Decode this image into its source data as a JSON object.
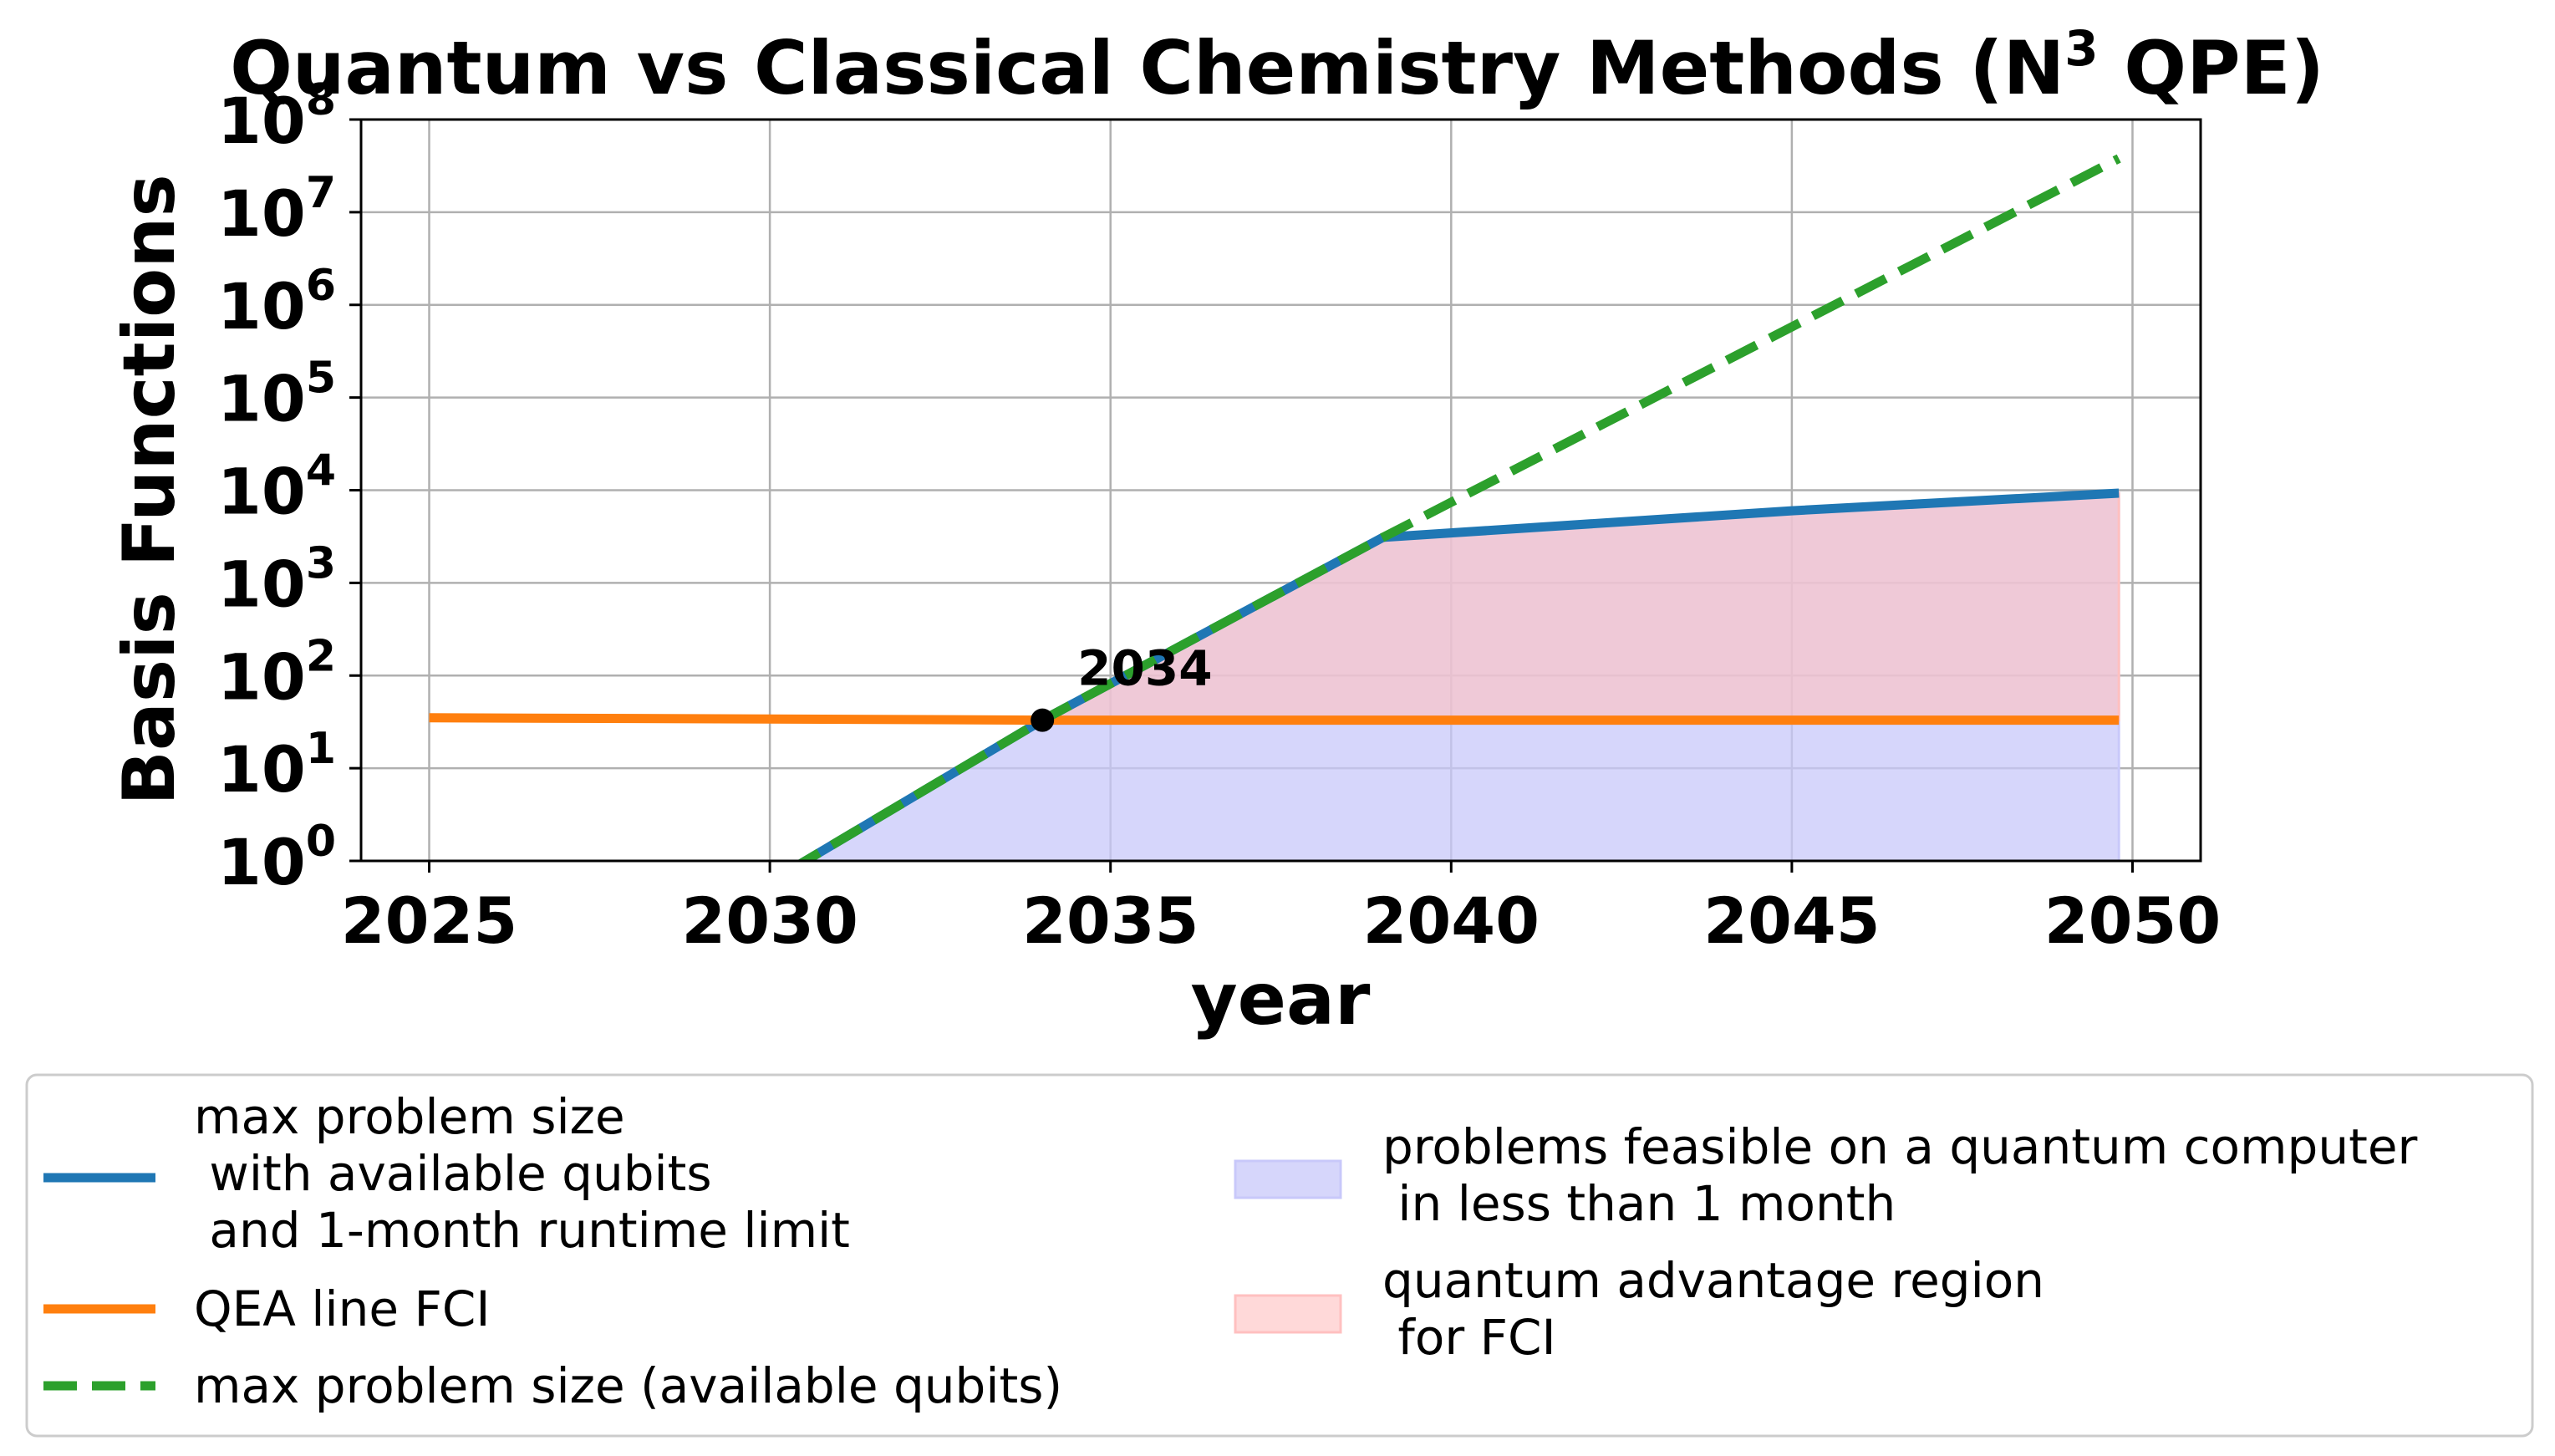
{
  "chart_data": {
    "type": "line",
    "title": "Quantum vs Classical Chemistry Methods (N",
    "title_superscript": "3",
    "title_suffix": " QPE)",
    "xlabel": "year",
    "ylabel": "Basis Functions",
    "xlim": [
      2024.0,
      2051.0
    ],
    "ylim": [
      1,
      100000000
    ],
    "yscale": "log",
    "grid": true,
    "x_ticks": [
      2025,
      2030,
      2035,
      2040,
      2045,
      2050
    ],
    "x_tick_labels": [
      "2025",
      "2030",
      "2035",
      "2040",
      "2045",
      "2050"
    ],
    "y_ticks": [
      {
        "value": 1,
        "base": "10",
        "exp": "0"
      },
      {
        "value": 10,
        "base": "10",
        "exp": "1"
      },
      {
        "value": 100,
        "base": "10",
        "exp": "2"
      },
      {
        "value": 1000,
        "base": "10",
        "exp": "3"
      },
      {
        "value": 10000,
        "base": "10",
        "exp": "4"
      },
      {
        "value": 100000,
        "base": "10",
        "exp": "5"
      },
      {
        "value": 1000000,
        "base": "10",
        "exp": "6"
      },
      {
        "value": 10000000,
        "base": "10",
        "exp": "7"
      },
      {
        "value": 100000000,
        "base": "10",
        "exp": "8"
      }
    ],
    "series": [
      {
        "name": "max problem size\n with available qubits\n and 1-month runtime limit",
        "color": "#1f77b4",
        "style": "solid",
        "x": [
          2030.3,
          2034,
          2039,
          2045,
          2049.8
        ],
        "y": [
          0.8,
          33,
          3100,
          6000,
          9300
        ]
      },
      {
        "name": "QEA line FCI",
        "color": "#ff7f0e",
        "style": "solid",
        "x": [
          2025,
          2030,
          2034,
          2040,
          2045,
          2049.8
        ],
        "y": [
          35,
          34,
          33,
          33,
          33,
          33
        ]
      },
      {
        "name": "max problem size (available qubits)",
        "color": "#2ca02c",
        "style": "dashed",
        "x": [
          2030.3,
          2034,
          2039,
          2049.8
        ],
        "y": [
          0.8,
          33,
          3100,
          38000000
        ]
      }
    ],
    "fills": [
      {
        "name": "problems feasible on a quantum computer\n in less than 1 month",
        "color": "#c8c8fa",
        "x": [
          2030.3,
          2034,
          2039,
          2045,
          2049.8
        ],
        "y": [
          0.8,
          33,
          3100,
          6000,
          9300
        ],
        "baseline": 1
      },
      {
        "name": "quantum advantage region\n for FCI",
        "color": "#ffc0c0",
        "x": [
          2034,
          2039,
          2045,
          2049.8
        ],
        "y": [
          33,
          3100,
          6000,
          9300
        ],
        "baseline": 33
      }
    ],
    "annotations": [
      {
        "text": "2034",
        "x": 2034,
        "y": 33
      }
    ],
    "legend": {
      "placement": "below",
      "columns": 2
    }
  }
}
